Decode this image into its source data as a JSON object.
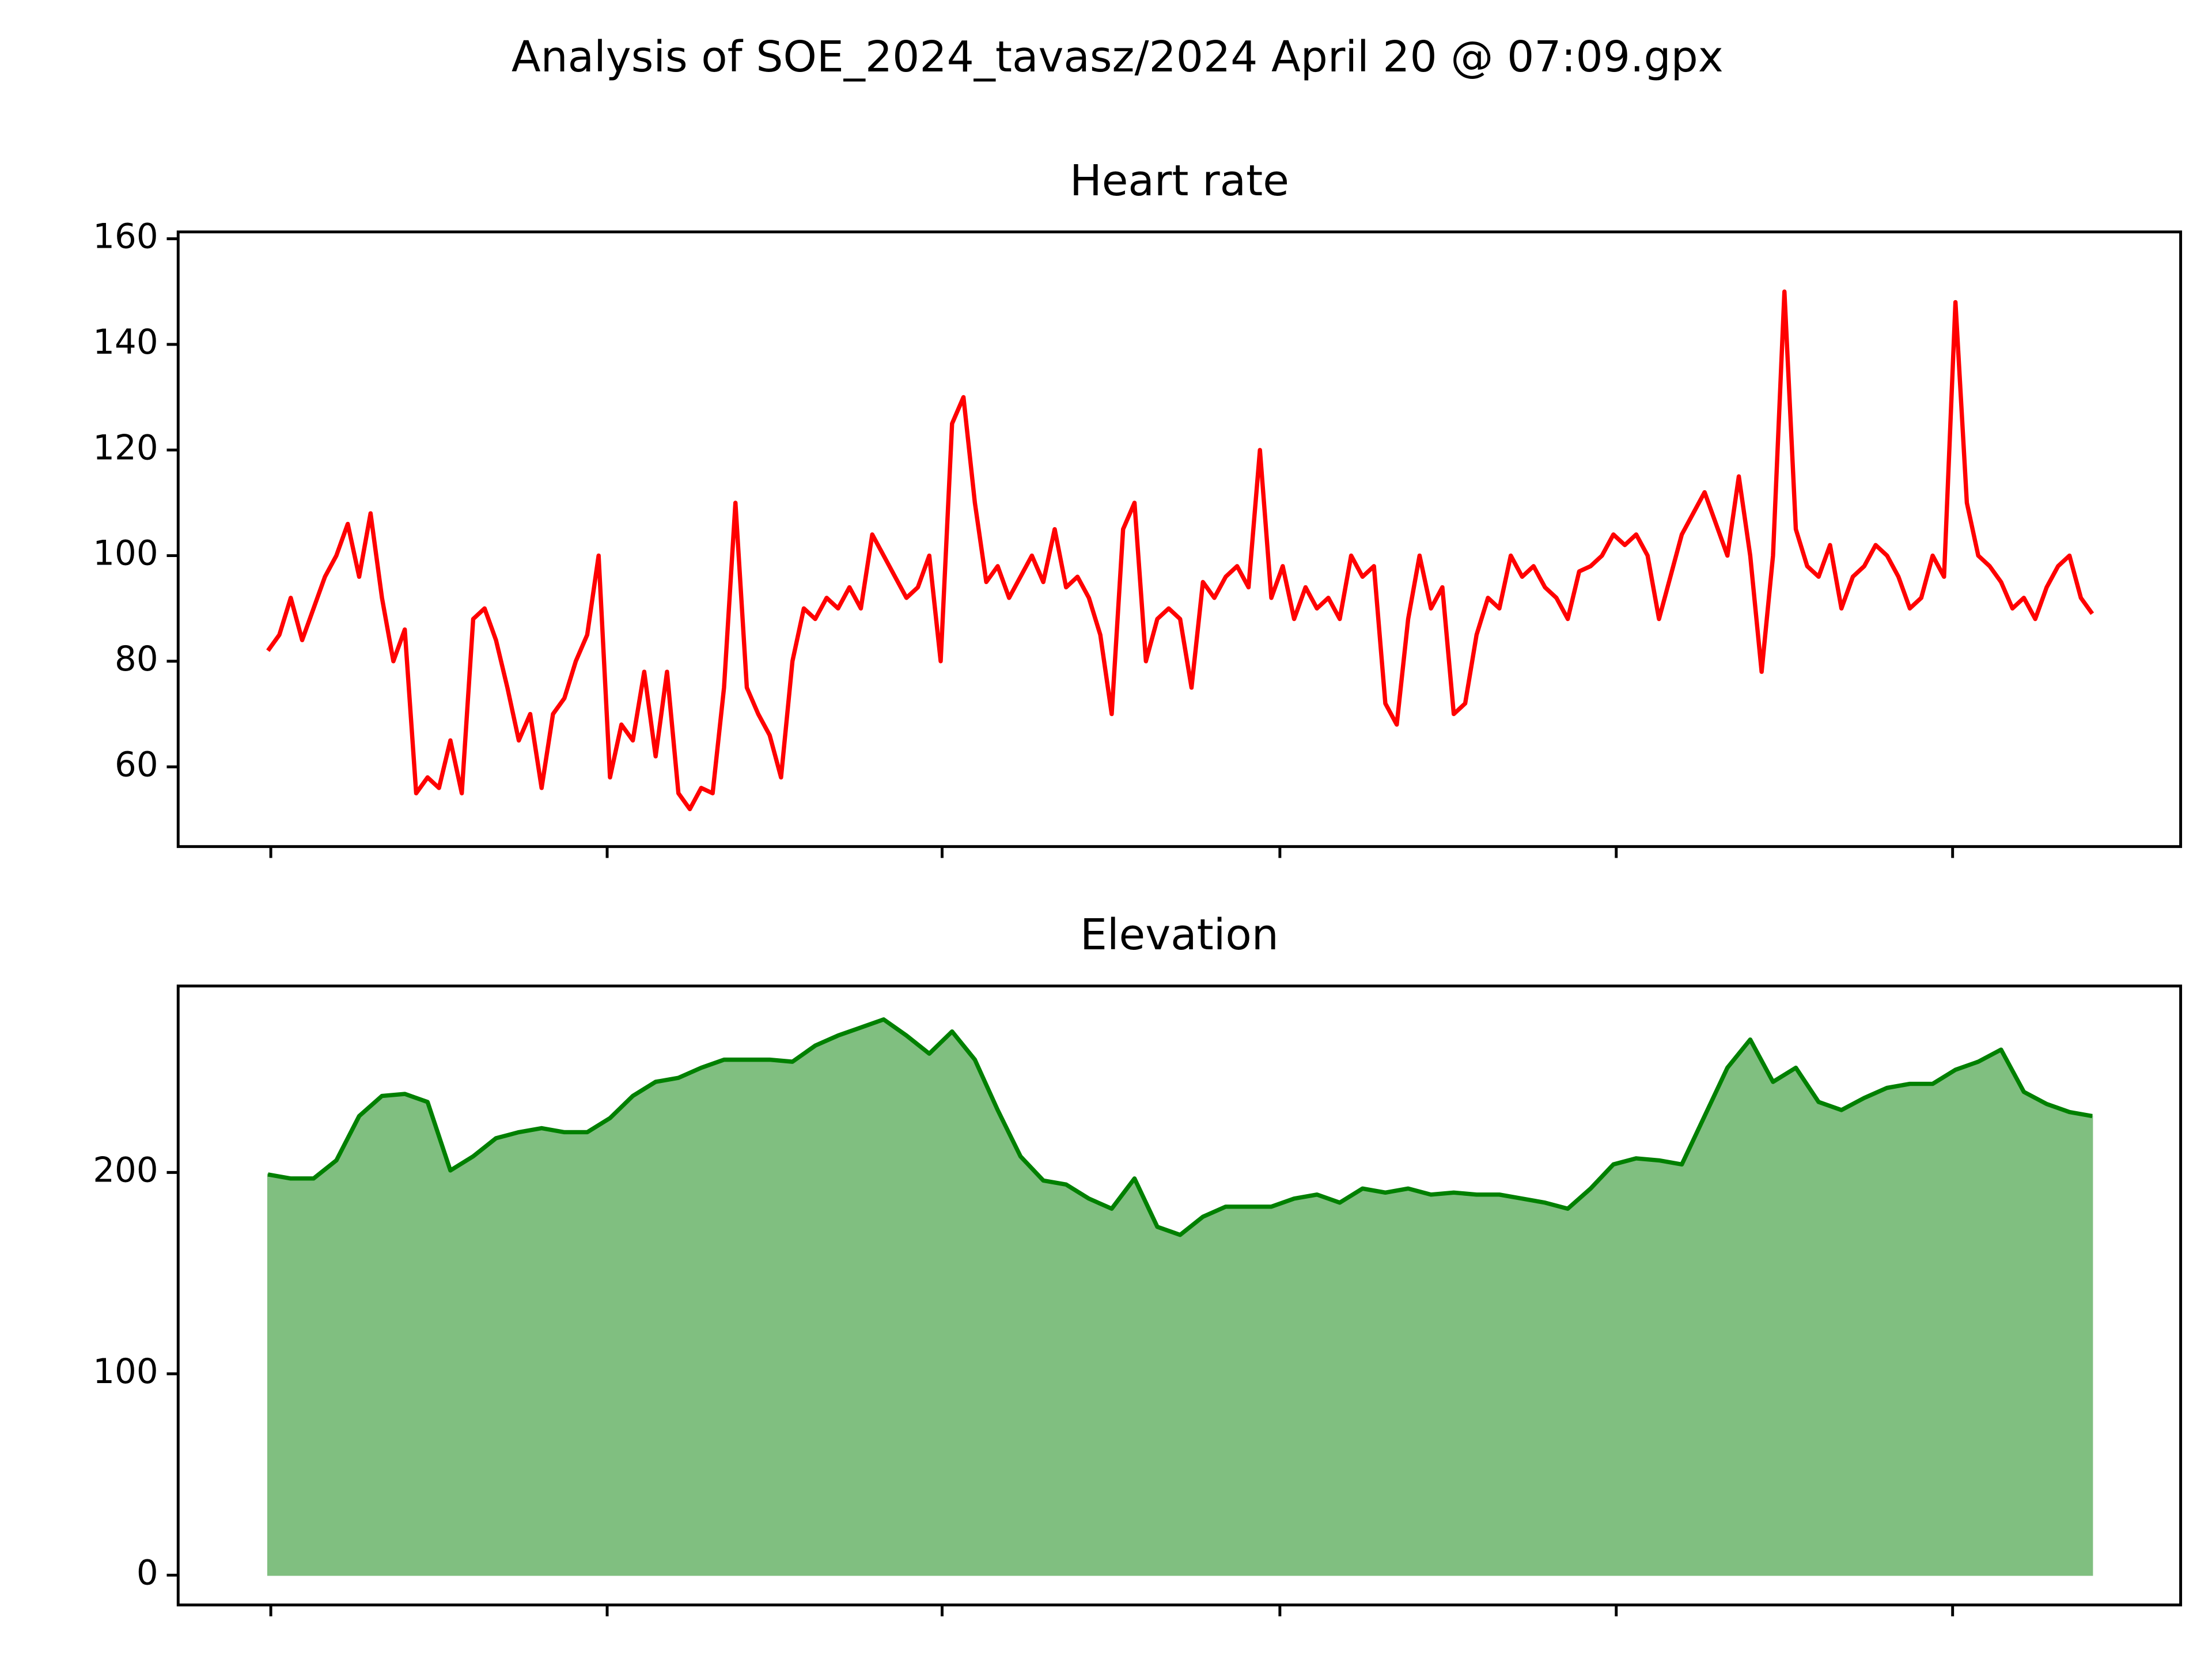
{
  "title": "Analysis of SOE_2024_tavasz/2024 April 20 @ 07:09.gpx",
  "chart_data": [
    {
      "type": "line",
      "title": "Heart rate",
      "color": "#ff0000",
      "values": [
        82,
        85,
        92,
        84,
        90,
        96,
        100,
        106,
        96,
        108,
        92,
        80,
        86,
        55,
        58,
        56,
        65,
        55,
        88,
        90,
        84,
        75,
        65,
        70,
        56,
        70,
        73,
        80,
        85,
        100,
        58,
        68,
        65,
        78,
        62,
        78,
        55,
        52,
        56,
        55,
        75,
        110,
        75,
        70,
        66,
        58,
        80,
        90,
        88,
        92,
        90,
        94,
        90,
        104,
        100,
        96,
        92,
        94,
        100,
        80,
        125,
        130,
        110,
        95,
        98,
        92,
        96,
        100,
        95,
        105,
        94,
        96,
        92,
        85,
        70,
        105,
        110,
        80,
        88,
        90,
        88,
        75,
        95,
        92,
        96,
        98,
        94,
        120,
        92,
        98,
        88,
        94,
        90,
        92,
        88,
        100,
        96,
        98,
        72,
        68,
        88,
        100,
        90,
        94,
        70,
        72,
        85,
        92,
        90,
        100,
        96,
        98,
        94,
        92,
        88,
        97,
        98,
        100,
        104,
        102,
        104,
        100,
        88,
        96,
        104,
        108,
        112,
        106,
        100,
        115,
        100,
        78,
        100,
        150,
        105,
        98,
        96,
        102,
        90,
        96,
        98,
        102,
        100,
        96,
        90,
        92,
        100,
        96,
        148,
        110,
        100,
        98,
        95,
        90,
        92,
        88,
        94,
        98,
        100,
        92,
        89
      ],
      "xlim": [
        -7.875,
        167.75
      ],
      "xticks": [
        0.25,
        29.75,
        59.125,
        88.75,
        118.25,
        147.75
      ],
      "ylim": [
        44.9,
        161.3
      ],
      "yticks": [
        60,
        80,
        100,
        120,
        140,
        160
      ]
    },
    {
      "type": "area",
      "title": "Elevation",
      "color": "#008000",
      "fill_color": "#80bf80",
      "values": [
        199,
        197,
        197,
        206,
        228,
        238,
        239,
        235,
        201,
        208,
        217,
        220,
        222,
        220,
        220,
        227,
        238,
        245,
        247,
        252,
        256,
        256,
        256,
        255,
        263,
        268,
        272,
        276,
        268,
        259,
        270,
        256,
        231,
        208,
        196,
        194,
        187,
        182,
        197,
        173,
        169,
        178,
        183,
        183,
        183,
        187,
        189,
        185,
        192,
        190,
        192,
        189,
        190,
        189,
        189,
        187,
        185,
        182,
        192,
        204,
        207,
        206,
        204,
        228,
        252,
        266,
        245,
        252,
        235,
        231,
        237,
        242,
        244,
        244,
        251,
        255,
        261,
        240,
        234,
        230,
        228
      ],
      "xlim": [
        -3.9375,
        83.875
      ],
      "xticks": [
        0.125,
        14.875,
        29.5625,
        44.375,
        59.125,
        73.875
      ],
      "ylim": [
        -14.8,
        292.6
      ],
      "yticks": [
        0,
        100,
        200
      ]
    }
  ]
}
